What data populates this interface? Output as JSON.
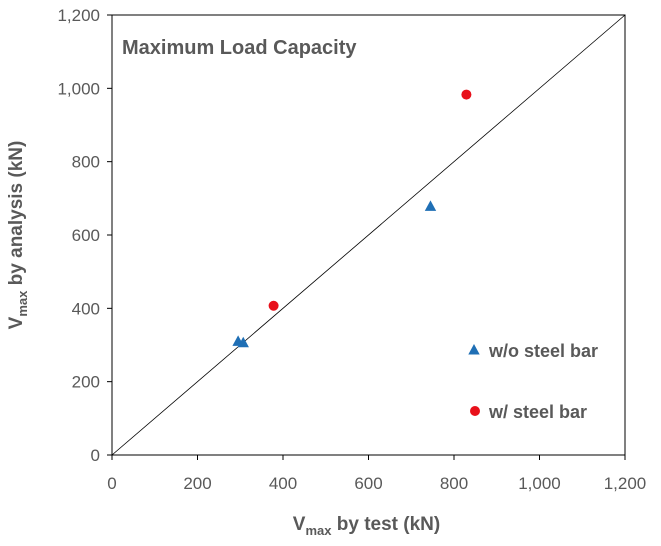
{
  "chart_data": {
    "type": "scatter",
    "title": "Maximum Load Capacity",
    "xlabel": {
      "main": "V",
      "sub": "max",
      "rest": " by test (kN)"
    },
    "ylabel": {
      "main": "V",
      "sub": "max",
      "rest": " by analysis (kN)"
    },
    "xlim": [
      0,
      1200
    ],
    "ylim": [
      0,
      1200
    ],
    "x_ticks": [
      0,
      200,
      400,
      600,
      800,
      1000,
      1200
    ],
    "y_ticks": [
      0,
      200,
      400,
      600,
      800,
      1000,
      1200
    ],
    "x_tick_labels": [
      "0",
      "200",
      "400",
      "600",
      "800",
      "1,000",
      "1,200"
    ],
    "y_tick_labels": [
      "0",
      "200",
      "400",
      "600",
      "800",
      "1,000",
      "1,200"
    ],
    "reference_line": {
      "from": [
        0,
        0
      ],
      "to": [
        1200,
        1200
      ],
      "color": "#000000"
    },
    "series": [
      {
        "name": "w/o steel bar",
        "marker": "triangle",
        "color": "#1F6FB5",
        "points": [
          [
            295,
            310
          ],
          [
            307,
            306
          ],
          [
            745,
            678
          ]
        ]
      },
      {
        "name": "w/ steel bar",
        "marker": "circle",
        "color": "#E8101A",
        "points": [
          [
            378,
            407
          ],
          [
            829,
            983
          ]
        ]
      }
    ],
    "legend_position": "bottom-right",
    "grid": false
  }
}
